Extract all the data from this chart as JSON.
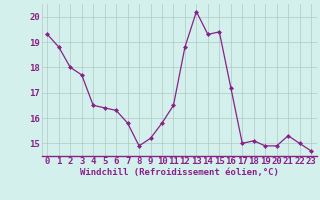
{
  "x": [
    0,
    1,
    2,
    3,
    4,
    5,
    6,
    7,
    8,
    9,
    10,
    11,
    12,
    13,
    14,
    15,
    16,
    17,
    18,
    19,
    20,
    21,
    22,
    23
  ],
  "y": [
    19.3,
    18.8,
    18.0,
    17.7,
    16.5,
    16.4,
    16.3,
    15.8,
    14.9,
    15.2,
    15.8,
    16.5,
    18.8,
    20.2,
    19.3,
    19.4,
    17.2,
    15.0,
    15.1,
    14.9,
    14.9,
    15.3,
    15.0,
    14.7
  ],
  "line_color": "#882288",
  "marker": "D",
  "marker_size": 2,
  "bg_color": "#d4f0ec",
  "grid_color": "#b0c8c4",
  "xlabel": "Windchill (Refroidissement éolien,°C)",
  "xlabel_color": "#882288",
  "tick_color": "#882288",
  "ylim_min": 14.5,
  "ylim_max": 20.5,
  "yticks": [
    15,
    16,
    17,
    18,
    19,
    20
  ],
  "xticks": [
    0,
    1,
    2,
    3,
    4,
    5,
    6,
    7,
    8,
    9,
    10,
    11,
    12,
    13,
    14,
    15,
    16,
    17,
    18,
    19,
    20,
    21,
    22,
    23
  ],
  "xlabel_fontsize": 6.5,
  "tick_fontsize": 6.5
}
